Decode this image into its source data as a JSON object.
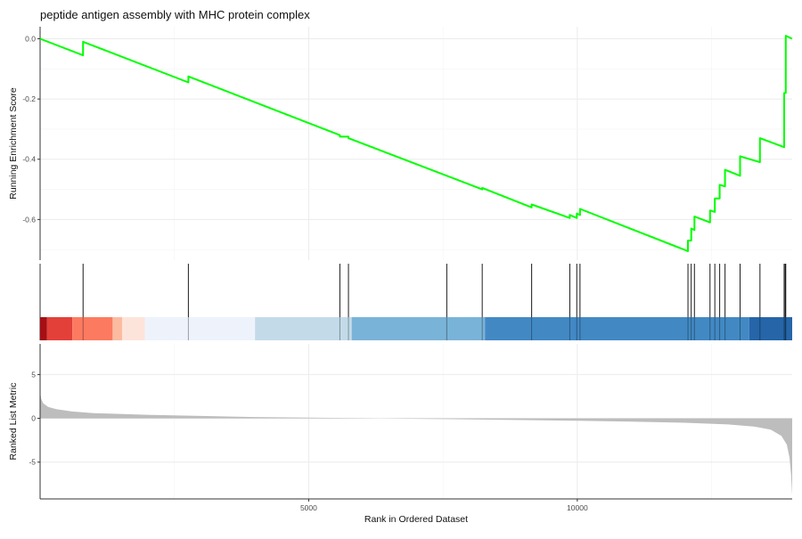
{
  "chart_data": {
    "type": "line",
    "title": "peptide antigen assembly with MHC protein complex",
    "xlabel": "Rank in Ordered Dataset",
    "xlim": [
      0,
      14000
    ],
    "x_ticks": [
      5000,
      10000
    ],
    "x_tick_labels": [
      "5000",
      "10000"
    ],
    "panels": {
      "running_score": {
        "ylabel": "Running Enrichment Score",
        "ylim": [
          -0.735,
          0.04
        ],
        "y_ticks": [
          0.0,
          -0.2,
          -0.4,
          -0.6
        ],
        "y_tick_labels": [
          "0.0",
          "-0.2",
          "-0.4",
          "-0.6"
        ],
        "line_color": "#00ff00",
        "points": [
          [
            0,
            0.0
          ],
          [
            800,
            -0.055
          ],
          [
            800,
            -0.01
          ],
          [
            2760,
            -0.145
          ],
          [
            2760,
            -0.125
          ],
          [
            5580,
            -0.32
          ],
          [
            5580,
            -0.325
          ],
          [
            5740,
            -0.325
          ],
          [
            5740,
            -0.33
          ],
          [
            7570,
            -0.455
          ],
          [
            7570,
            -0.455
          ],
          [
            8230,
            -0.5
          ],
          [
            8230,
            -0.495
          ],
          [
            9150,
            -0.56
          ],
          [
            9150,
            -0.55
          ],
          [
            9860,
            -0.595
          ],
          [
            9860,
            -0.585
          ],
          [
            9990,
            -0.595
          ],
          [
            9990,
            -0.58
          ],
          [
            10050,
            -0.585
          ],
          [
            10050,
            -0.565
          ],
          [
            12060,
            -0.705
          ],
          [
            12060,
            -0.67
          ],
          [
            12120,
            -0.67
          ],
          [
            12120,
            -0.63
          ],
          [
            12180,
            -0.635
          ],
          [
            12180,
            -0.59
          ],
          [
            12470,
            -0.61
          ],
          [
            12470,
            -0.57
          ],
          [
            12560,
            -0.575
          ],
          [
            12560,
            -0.53
          ],
          [
            12650,
            -0.53
          ],
          [
            12650,
            -0.485
          ],
          [
            12750,
            -0.49
          ],
          [
            12750,
            -0.435
          ],
          [
            13030,
            -0.455
          ],
          [
            13030,
            -0.39
          ],
          [
            13400,
            -0.41
          ],
          [
            13400,
            -0.33
          ],
          [
            13850,
            -0.36
          ],
          [
            13850,
            -0.18
          ],
          [
            13880,
            -0.18
          ],
          [
            13880,
            0.01
          ],
          [
            14000,
            0.0
          ]
        ]
      },
      "hits": {
        "positions": [
          800,
          2760,
          5580,
          5740,
          7570,
          8230,
          9150,
          9860,
          9990,
          10050,
          12060,
          12120,
          12180,
          12470,
          12560,
          12650,
          12750,
          13030,
          13400,
          13850,
          13870,
          13880
        ]
      },
      "color_band": {
        "segments": [
          {
            "from": 0,
            "to": 130,
            "color": "#a50f15"
          },
          {
            "from": 130,
            "to": 600,
            "color": "#e3403a"
          },
          {
            "from": 600,
            "to": 1350,
            "color": "#fc7a60"
          },
          {
            "from": 1350,
            "to": 1530,
            "color": "#fcbba1"
          },
          {
            "from": 1530,
            "to": 1950,
            "color": "#fde4da"
          },
          {
            "from": 1950,
            "to": 4000,
            "color": "#eef3fb"
          },
          {
            "from": 4000,
            "to": 5800,
            "color": "#c3dbe9"
          },
          {
            "from": 5800,
            "to": 8280,
            "color": "#79b3d8"
          },
          {
            "from": 8280,
            "to": 13200,
            "color": "#4289c4"
          },
          {
            "from": 13200,
            "to": 14000,
            "color": "#2565a8"
          }
        ]
      },
      "ranked_metric": {
        "ylabel": "Ranked List Metric",
        "ylim": [
          -9.2,
          8.5
        ],
        "y_ticks": [
          5,
          0,
          -5
        ],
        "y_tick_labels": [
          "5",
          "0",
          "-5"
        ],
        "fill_color": "#bdbdbd",
        "points": [
          [
            0,
            3.0
          ],
          [
            20,
            2.2
          ],
          [
            60,
            1.7
          ],
          [
            150,
            1.3
          ],
          [
            300,
            1.05
          ],
          [
            600,
            0.78
          ],
          [
            1000,
            0.6
          ],
          [
            2000,
            0.4
          ],
          [
            3000,
            0.27
          ],
          [
            4000,
            0.15
          ],
          [
            5000,
            0.08
          ],
          [
            6000,
            0.02
          ],
          [
            7000,
            -0.05
          ],
          [
            8000,
            -0.12
          ],
          [
            9000,
            -0.2
          ],
          [
            10000,
            -0.28
          ],
          [
            11000,
            -0.38
          ],
          [
            12000,
            -0.5
          ],
          [
            12800,
            -0.7
          ],
          [
            13300,
            -0.95
          ],
          [
            13600,
            -1.3
          ],
          [
            13800,
            -2.0
          ],
          [
            13900,
            -3.0
          ],
          [
            13950,
            -4.5
          ],
          [
            13980,
            -6.5
          ],
          [
            14000,
            -8.8
          ]
        ]
      }
    }
  }
}
